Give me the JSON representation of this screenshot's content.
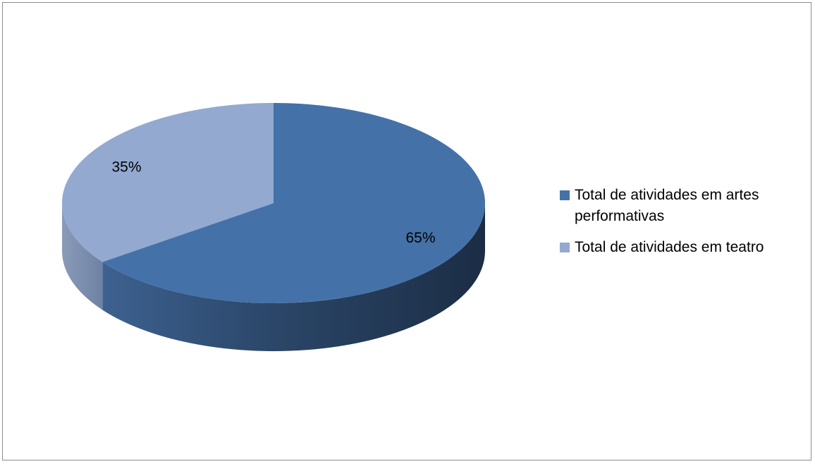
{
  "chart_data": {
    "type": "pie",
    "style": "3d",
    "title": "",
    "slices": [
      {
        "name": "Total de atividades em artes performativas",
        "value": 65,
        "label": "65%",
        "color": "#4472a8"
      },
      {
        "name": "Total de atividades em teatro",
        "value": 35,
        "label": "35%",
        "color": "#93a9d0"
      }
    ],
    "legend_position": "right"
  }
}
